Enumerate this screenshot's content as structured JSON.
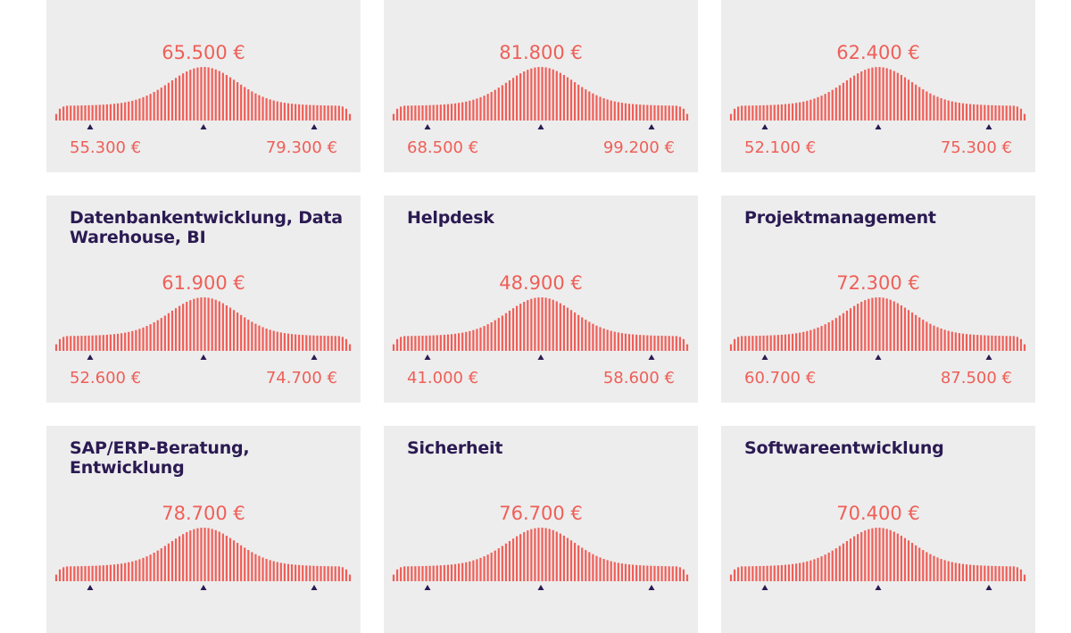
{
  "colors": {
    "card_bg": "#ededed",
    "accent": "#ef5f58",
    "title": "#2b1a52"
  },
  "chart_data": [
    {
      "type": "distribution",
      "title": "",
      "median": "65.500 €",
      "low": "55.300 €",
      "high": "79.300 €"
    },
    {
      "type": "distribution",
      "title": "",
      "median": "81.800 €",
      "low": "68.500 €",
      "high": "99.200 €"
    },
    {
      "type": "distribution",
      "title": "",
      "median": "62.400 €",
      "low": "52.100 €",
      "high": "75.300 €"
    },
    {
      "type": "distribution",
      "title": "Datenbankentwicklung, Data Warehouse, BI",
      "median": "61.900 €",
      "low": "52.600 €",
      "high": "74.700 €"
    },
    {
      "type": "distribution",
      "title": "Helpdesk",
      "median": "48.900 €",
      "low": "41.000 €",
      "high": "58.600 €"
    },
    {
      "type": "distribution",
      "title": "Projektmanagement",
      "median": "72.300 €",
      "low": "60.700 €",
      "high": "87.500 €"
    },
    {
      "type": "distribution",
      "title": "SAP/ERP-Beratung, Entwicklung",
      "median": "78.700 €",
      "low": "",
      "high": ""
    },
    {
      "type": "distribution",
      "title": "Sicherheit",
      "median": "76.700 €",
      "low": "",
      "high": ""
    },
    {
      "type": "distribution",
      "title": "Softwareentwicklung",
      "median": "70.400 €",
      "low": "",
      "high": ""
    }
  ]
}
